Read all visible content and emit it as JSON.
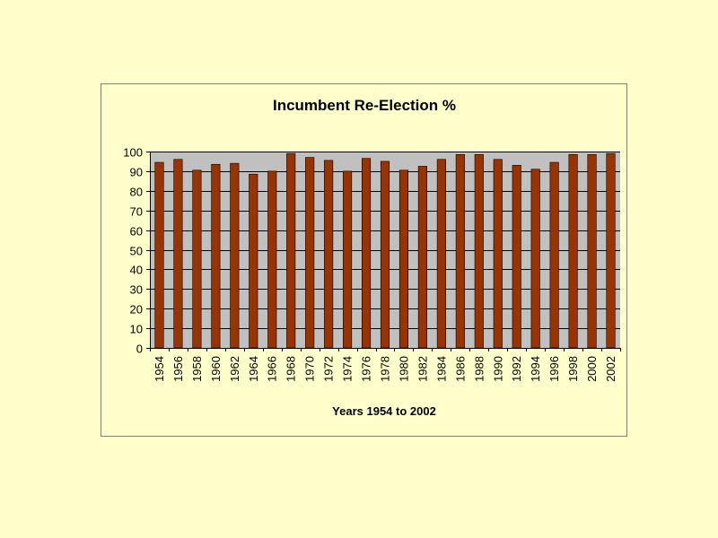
{
  "chart_data": {
    "type": "bar",
    "title": "Incumbent Re-Election %",
    "xlabel": "Years 1954 to 2002",
    "ylabel": "",
    "ylim": [
      0,
      100
    ],
    "yticks": [
      0,
      10,
      20,
      30,
      40,
      50,
      60,
      70,
      80,
      90,
      100
    ],
    "grid": true,
    "categories": [
      "1954",
      "1956",
      "1958",
      "1960",
      "1962",
      "1964",
      "1966",
      "1968",
      "1970",
      "1972",
      "1974",
      "1976",
      "1978",
      "1980",
      "1982",
      "1984",
      "1986",
      "1988",
      "1990",
      "1992",
      "1994",
      "1996",
      "1998",
      "2000",
      "2002"
    ],
    "values": [
      94.5,
      96,
      90.5,
      93.5,
      94,
      88.5,
      90,
      99,
      97,
      95.5,
      90,
      96.5,
      95,
      90.5,
      92.5,
      96,
      98.5,
      98.5,
      96,
      93,
      91,
      94.5,
      98.5,
      98.5,
      99
    ],
    "colors": {
      "bar_fill": "#993300",
      "bar_stroke": "#000000",
      "plot_background": "#c0c0c0",
      "gridline": "#000000",
      "page_background": "#ffffcc"
    }
  }
}
